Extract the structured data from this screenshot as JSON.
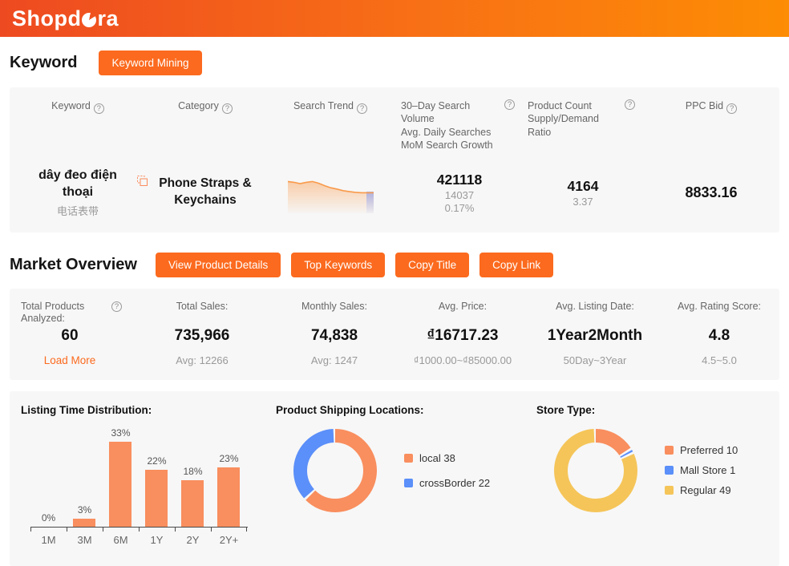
{
  "header": {
    "logo_left": "Shopd",
    "logo_right": "ra",
    "logo_full": "Shopdora"
  },
  "keyword_section": {
    "title": "Keyword",
    "mining_button": "Keyword Mining"
  },
  "table": {
    "columns": [
      {
        "label": "Keyword"
      },
      {
        "label": "Category"
      },
      {
        "label": "Search Trend"
      },
      {
        "lines": [
          "30–Day Search Volume",
          "Avg. Daily Searches",
          "MoM Search Growth"
        ]
      },
      {
        "lines": [
          "Product Count",
          "Supply/Demand Ratio"
        ]
      },
      {
        "label": "PPC Bid"
      }
    ],
    "row": {
      "keyword": "dây đeo điện thoại",
      "keyword_translation": "电话表带",
      "category": "Phone Straps & Keychains",
      "search_volume": "421118",
      "daily_searches": "14037",
      "mom_growth": "0.17%",
      "product_count": "4164",
      "supply_demand_ratio": "3.37",
      "ppc_bid": "8833.16"
    }
  },
  "market_overview": {
    "title": "Market Overview",
    "buttons": [
      "View Product Details",
      "Top Keywords",
      "Copy Title",
      "Copy Link"
    ],
    "stats": [
      {
        "label": "Total Products Analyzed:",
        "value": "60",
        "sub": "Load More"
      },
      {
        "label": "Total Sales:",
        "value": "735,966",
        "sub": "Avg: 12266"
      },
      {
        "label": "Monthly Sales:",
        "value": "74,838",
        "sub": "Avg: 1247"
      },
      {
        "label": "Avg. Price:",
        "value": "₫16717.23",
        "sub": "₫1000.00~₫85000.00"
      },
      {
        "label": "Avg. Listing Date:",
        "value": "1Year2Month",
        "sub": "50Day~3Year"
      },
      {
        "label": "Avg. Rating Score:",
        "value": "4.8",
        "sub": "4.5~5.0"
      }
    ]
  },
  "colors": {
    "brand_orange": "#fb6a1e",
    "chart_orange": "#f98e5e",
    "chart_blue": "#5b8ff9",
    "chart_yellow": "#f5c559",
    "panel_bg": "#f7f7f7"
  },
  "chart_data": [
    {
      "id": "search-trend",
      "type": "area",
      "title": "Search Trend",
      "points_norm": [
        0.8,
        0.78,
        0.75,
        0.78,
        0.8,
        0.76,
        0.7,
        0.65,
        0.62,
        0.58,
        0.56,
        0.54,
        0.53,
        0.53,
        0.53
      ],
      "line_color": "#f99a4a",
      "tail_highlight_color": "#7d96f5",
      "note": "downward-trending sparkline, last segment highlighted blue"
    },
    {
      "id": "listing-time",
      "type": "bar",
      "title": "Listing Time Distribution:",
      "categories": [
        "1M",
        "3M",
        "6M",
        "1Y",
        "2Y",
        "2Y+"
      ],
      "values": [
        0,
        3,
        33,
        22,
        18,
        23
      ],
      "unit": "%",
      "ylim": [
        0,
        40
      ],
      "bar_color": "#f98e5e"
    },
    {
      "id": "shipping",
      "type": "pie",
      "title": "Product Shipping Locations:",
      "labels": [
        "local",
        "crossBorder"
      ],
      "values": [
        38,
        22
      ],
      "colors": [
        "#f98e5e",
        "#5b8ff9"
      ],
      "legend_position": "right"
    },
    {
      "id": "store-type",
      "type": "pie",
      "title": "Store Type:",
      "labels": [
        "Preferred",
        "Mall Store",
        "Regular"
      ],
      "values": [
        10,
        1,
        49
      ],
      "colors": [
        "#f98e5e",
        "#5b8ff9",
        "#f5c559"
      ],
      "legend_position": "right"
    }
  ]
}
